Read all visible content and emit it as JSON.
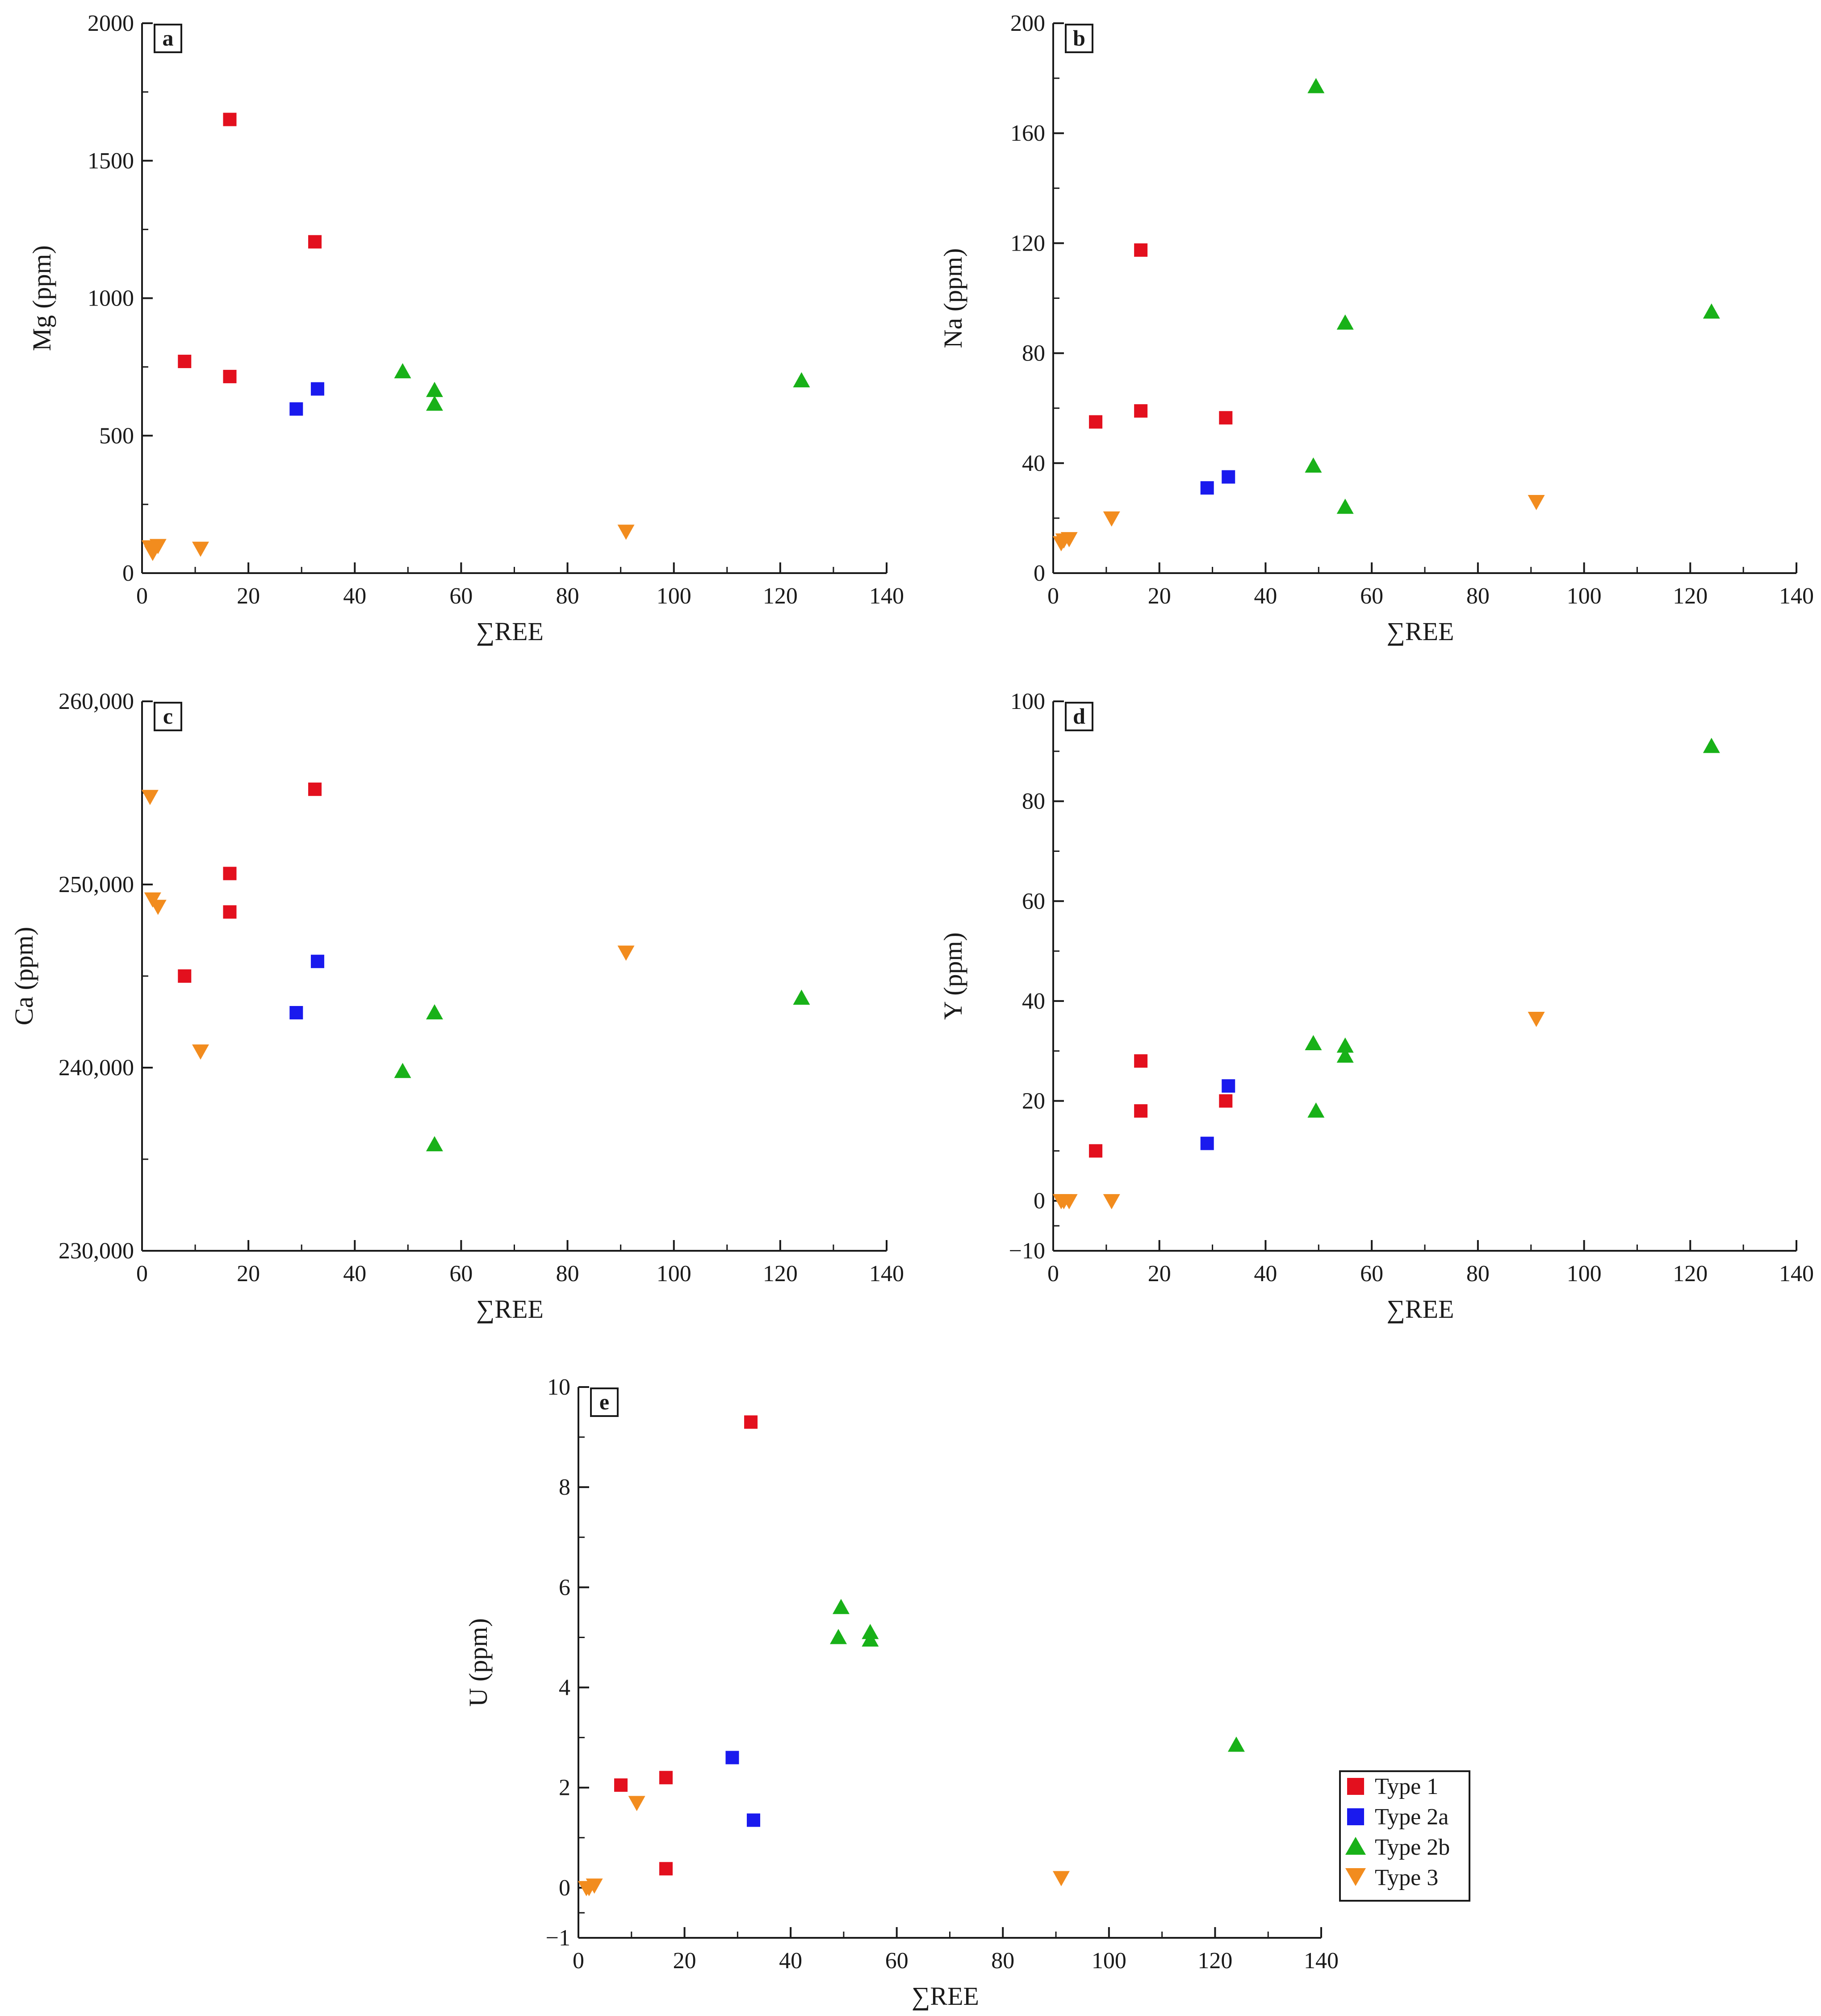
{
  "chart_data": [
    {
      "type": "scatter",
      "panel_label": "a",
      "xlabel": "∑REE",
      "ylabel": "Mg (ppm)",
      "xlim": [
        0,
        140
      ],
      "ylim": [
        0,
        2000
      ],
      "x_ticks": [
        0,
        20,
        40,
        60,
        80,
        100,
        120,
        140
      ],
      "x_tick_labels": [
        "0",
        "20",
        "40",
        "60",
        "80",
        "100",
        "120",
        "140"
      ],
      "y_ticks": [
        0,
        500,
        1000,
        1500,
        2000
      ],
      "y_tick_labels": [
        "0",
        "500",
        "1000",
        "1500",
        "2000"
      ],
      "series": [
        {
          "name": "Type 1",
          "points": [
            [
              8,
              770
            ],
            [
              16.5,
              1650
            ],
            [
              16.5,
              715
            ],
            [
              32.5,
              1205
            ]
          ]
        },
        {
          "name": "Type 2a",
          "points": [
            [
              29,
              597
            ],
            [
              33,
              670
            ]
          ]
        },
        {
          "name": "Type 2b",
          "points": [
            [
              49,
              733
            ],
            [
              55,
              665
            ],
            [
              55,
              615
            ],
            [
              124,
              700
            ]
          ]
        },
        {
          "name": "Type 3",
          "points": [
            [
              1.5,
              95
            ],
            [
              2,
              75
            ],
            [
              3,
              100
            ],
            [
              11,
              90
            ],
            [
              91,
              152
            ]
          ]
        }
      ]
    },
    {
      "type": "scatter",
      "panel_label": "b",
      "xlabel": "∑REE",
      "ylabel": "Na (ppm)",
      "xlim": [
        0,
        140
      ],
      "ylim": [
        0,
        200
      ],
      "x_ticks": [
        0,
        20,
        40,
        60,
        80,
        100,
        120,
        140
      ],
      "x_tick_labels": [
        "0",
        "20",
        "40",
        "60",
        "80",
        "100",
        "120",
        "140"
      ],
      "y_ticks": [
        0,
        40,
        80,
        120,
        160,
        200
      ],
      "y_tick_labels": [
        "0",
        "40",
        "80",
        "120",
        "160",
        "200"
      ],
      "series": [
        {
          "name": "Type 1",
          "points": [
            [
              8,
              55
            ],
            [
              16.5,
              117.5
            ],
            [
              16.5,
              59
            ],
            [
              32.5,
              56.5
            ]
          ]
        },
        {
          "name": "Type 2a",
          "points": [
            [
              29,
              31
            ],
            [
              33,
              35
            ]
          ]
        },
        {
          "name": "Type 2b",
          "points": [
            [
              49,
              39
            ],
            [
              49.5,
              177
            ],
            [
              55,
              24
            ],
            [
              55,
              91
            ],
            [
              124,
              95
            ]
          ]
        },
        {
          "name": "Type 3",
          "points": [
            [
              1.5,
              11
            ],
            [
              2,
              12
            ],
            [
              3,
              12.5
            ],
            [
              11,
              20
            ],
            [
              91,
              26
            ]
          ]
        }
      ]
    },
    {
      "type": "scatter",
      "panel_label": "c",
      "xlabel": "∑REE",
      "ylabel": "Ca (ppm)",
      "xlim": [
        0,
        140
      ],
      "ylim": [
        230000,
        260000
      ],
      "x_ticks": [
        0,
        20,
        40,
        60,
        80,
        100,
        120,
        140
      ],
      "x_tick_labels": [
        "0",
        "20",
        "40",
        "60",
        "80",
        "100",
        "120",
        "140"
      ],
      "y_ticks": [
        230000,
        240000,
        250000,
        260000
      ],
      "y_tick_labels": [
        "230,000",
        "240,000",
        "250,000",
        "260,000"
      ],
      "series": [
        {
          "name": "Type 1",
          "points": [
            [
              8,
              245000
            ],
            [
              16.5,
              250600
            ],
            [
              16.5,
              248500
            ],
            [
              32.5,
              255200
            ]
          ]
        },
        {
          "name": "Type 2a",
          "points": [
            [
              29,
              243000
            ],
            [
              33,
              245800
            ]
          ]
        },
        {
          "name": "Type 2b",
          "points": [
            [
              49,
              239800
            ],
            [
              55,
              243000
            ],
            [
              55,
              235800
            ],
            [
              124,
              243800
            ]
          ]
        },
        {
          "name": "Type 3",
          "points": [
            [
              1.5,
              254800
            ],
            [
              2,
              249200
            ],
            [
              3,
              248800
            ],
            [
              11,
              240900
            ],
            [
              91,
              246300
            ]
          ]
        }
      ]
    },
    {
      "type": "scatter",
      "panel_label": "d",
      "xlabel": "∑REE",
      "ylabel": "Y  (ppm)",
      "xlim": [
        0,
        140
      ],
      "ylim": [
        -10,
        100
      ],
      "x_ticks": [
        0,
        20,
        40,
        60,
        80,
        100,
        120,
        140
      ],
      "x_tick_labels": [
        "0",
        "20",
        "40",
        "60",
        "80",
        "100",
        "120",
        "140"
      ],
      "y_ticks": [
        -10,
        0,
        20,
        40,
        60,
        80,
        100
      ],
      "y_tick_labels": [
        "−10",
        "0",
        "20",
        "40",
        "60",
        "80",
        "100"
      ],
      "series": [
        {
          "name": "Type 1",
          "points": [
            [
              8,
              10
            ],
            [
              16.5,
              28
            ],
            [
              16.5,
              18
            ],
            [
              32.5,
              20
            ]
          ]
        },
        {
          "name": "Type 2a",
          "points": [
            [
              29,
              11.5
            ],
            [
              33,
              23
            ]
          ]
        },
        {
          "name": "Type 2b",
          "points": [
            [
              49,
              31.5
            ],
            [
              49.5,
              18
            ],
            [
              55,
              31
            ],
            [
              55,
              29
            ],
            [
              124,
              91
            ]
          ]
        },
        {
          "name": "Type 3",
          "points": [
            [
              1.5,
              0
            ],
            [
              2,
              0
            ],
            [
              3,
              0
            ],
            [
              11,
              0
            ],
            [
              91,
              36.5
            ]
          ]
        }
      ]
    },
    {
      "type": "scatter",
      "panel_label": "e",
      "xlabel": "∑REE",
      "ylabel": "U (ppm)",
      "xlim": [
        0,
        140
      ],
      "ylim": [
        -1,
        10
      ],
      "x_ticks": [
        0,
        20,
        40,
        60,
        80,
        100,
        120,
        140
      ],
      "x_tick_labels": [
        "0",
        "20",
        "40",
        "60",
        "80",
        "100",
        "120",
        "140"
      ],
      "y_ticks": [
        -1,
        0,
        2,
        4,
        6,
        8,
        10
      ],
      "y_tick_labels": [
        "−1",
        "0",
        "2",
        "4",
        "6",
        "8",
        "10"
      ],
      "series": [
        {
          "name": "Type 1",
          "points": [
            [
              8,
              2.05
            ],
            [
              16.5,
              2.2
            ],
            [
              16.5,
              0.38
            ],
            [
              32.5,
              9.3
            ]
          ]
        },
        {
          "name": "Type 2a",
          "points": [
            [
              29,
              2.6
            ],
            [
              33,
              1.35
            ]
          ]
        },
        {
          "name": "Type 2b",
          "points": [
            [
              49,
              5.0
            ],
            [
              49.5,
              5.6
            ],
            [
              55,
              5.1
            ],
            [
              55,
              4.95
            ],
            [
              124,
              2.85
            ]
          ]
        },
        {
          "name": "Type 3",
          "points": [
            [
              1.5,
              0
            ],
            [
              2,
              0
            ],
            [
              3,
              0.05
            ],
            [
              11,
              1.7
            ],
            [
              91,
              0.2
            ]
          ]
        }
      ]
    }
  ],
  "legend": {
    "entries": [
      {
        "label": "Type 1",
        "marker": "square",
        "color": "#e3101e"
      },
      {
        "label": "Type 2a",
        "marker": "square",
        "color": "#1a1aee"
      },
      {
        "label": "Type 2b",
        "marker": "triangle-up",
        "color": "#18b118"
      },
      {
        "label": "Type 3",
        "marker": "triangle-down",
        "color": "#f28c1e"
      }
    ]
  },
  "colors": {
    "type1": "#e3101e",
    "type2a": "#1a1aee",
    "type2b": "#18b118",
    "type3": "#f28c1e",
    "axis": "#1a1a1a"
  }
}
